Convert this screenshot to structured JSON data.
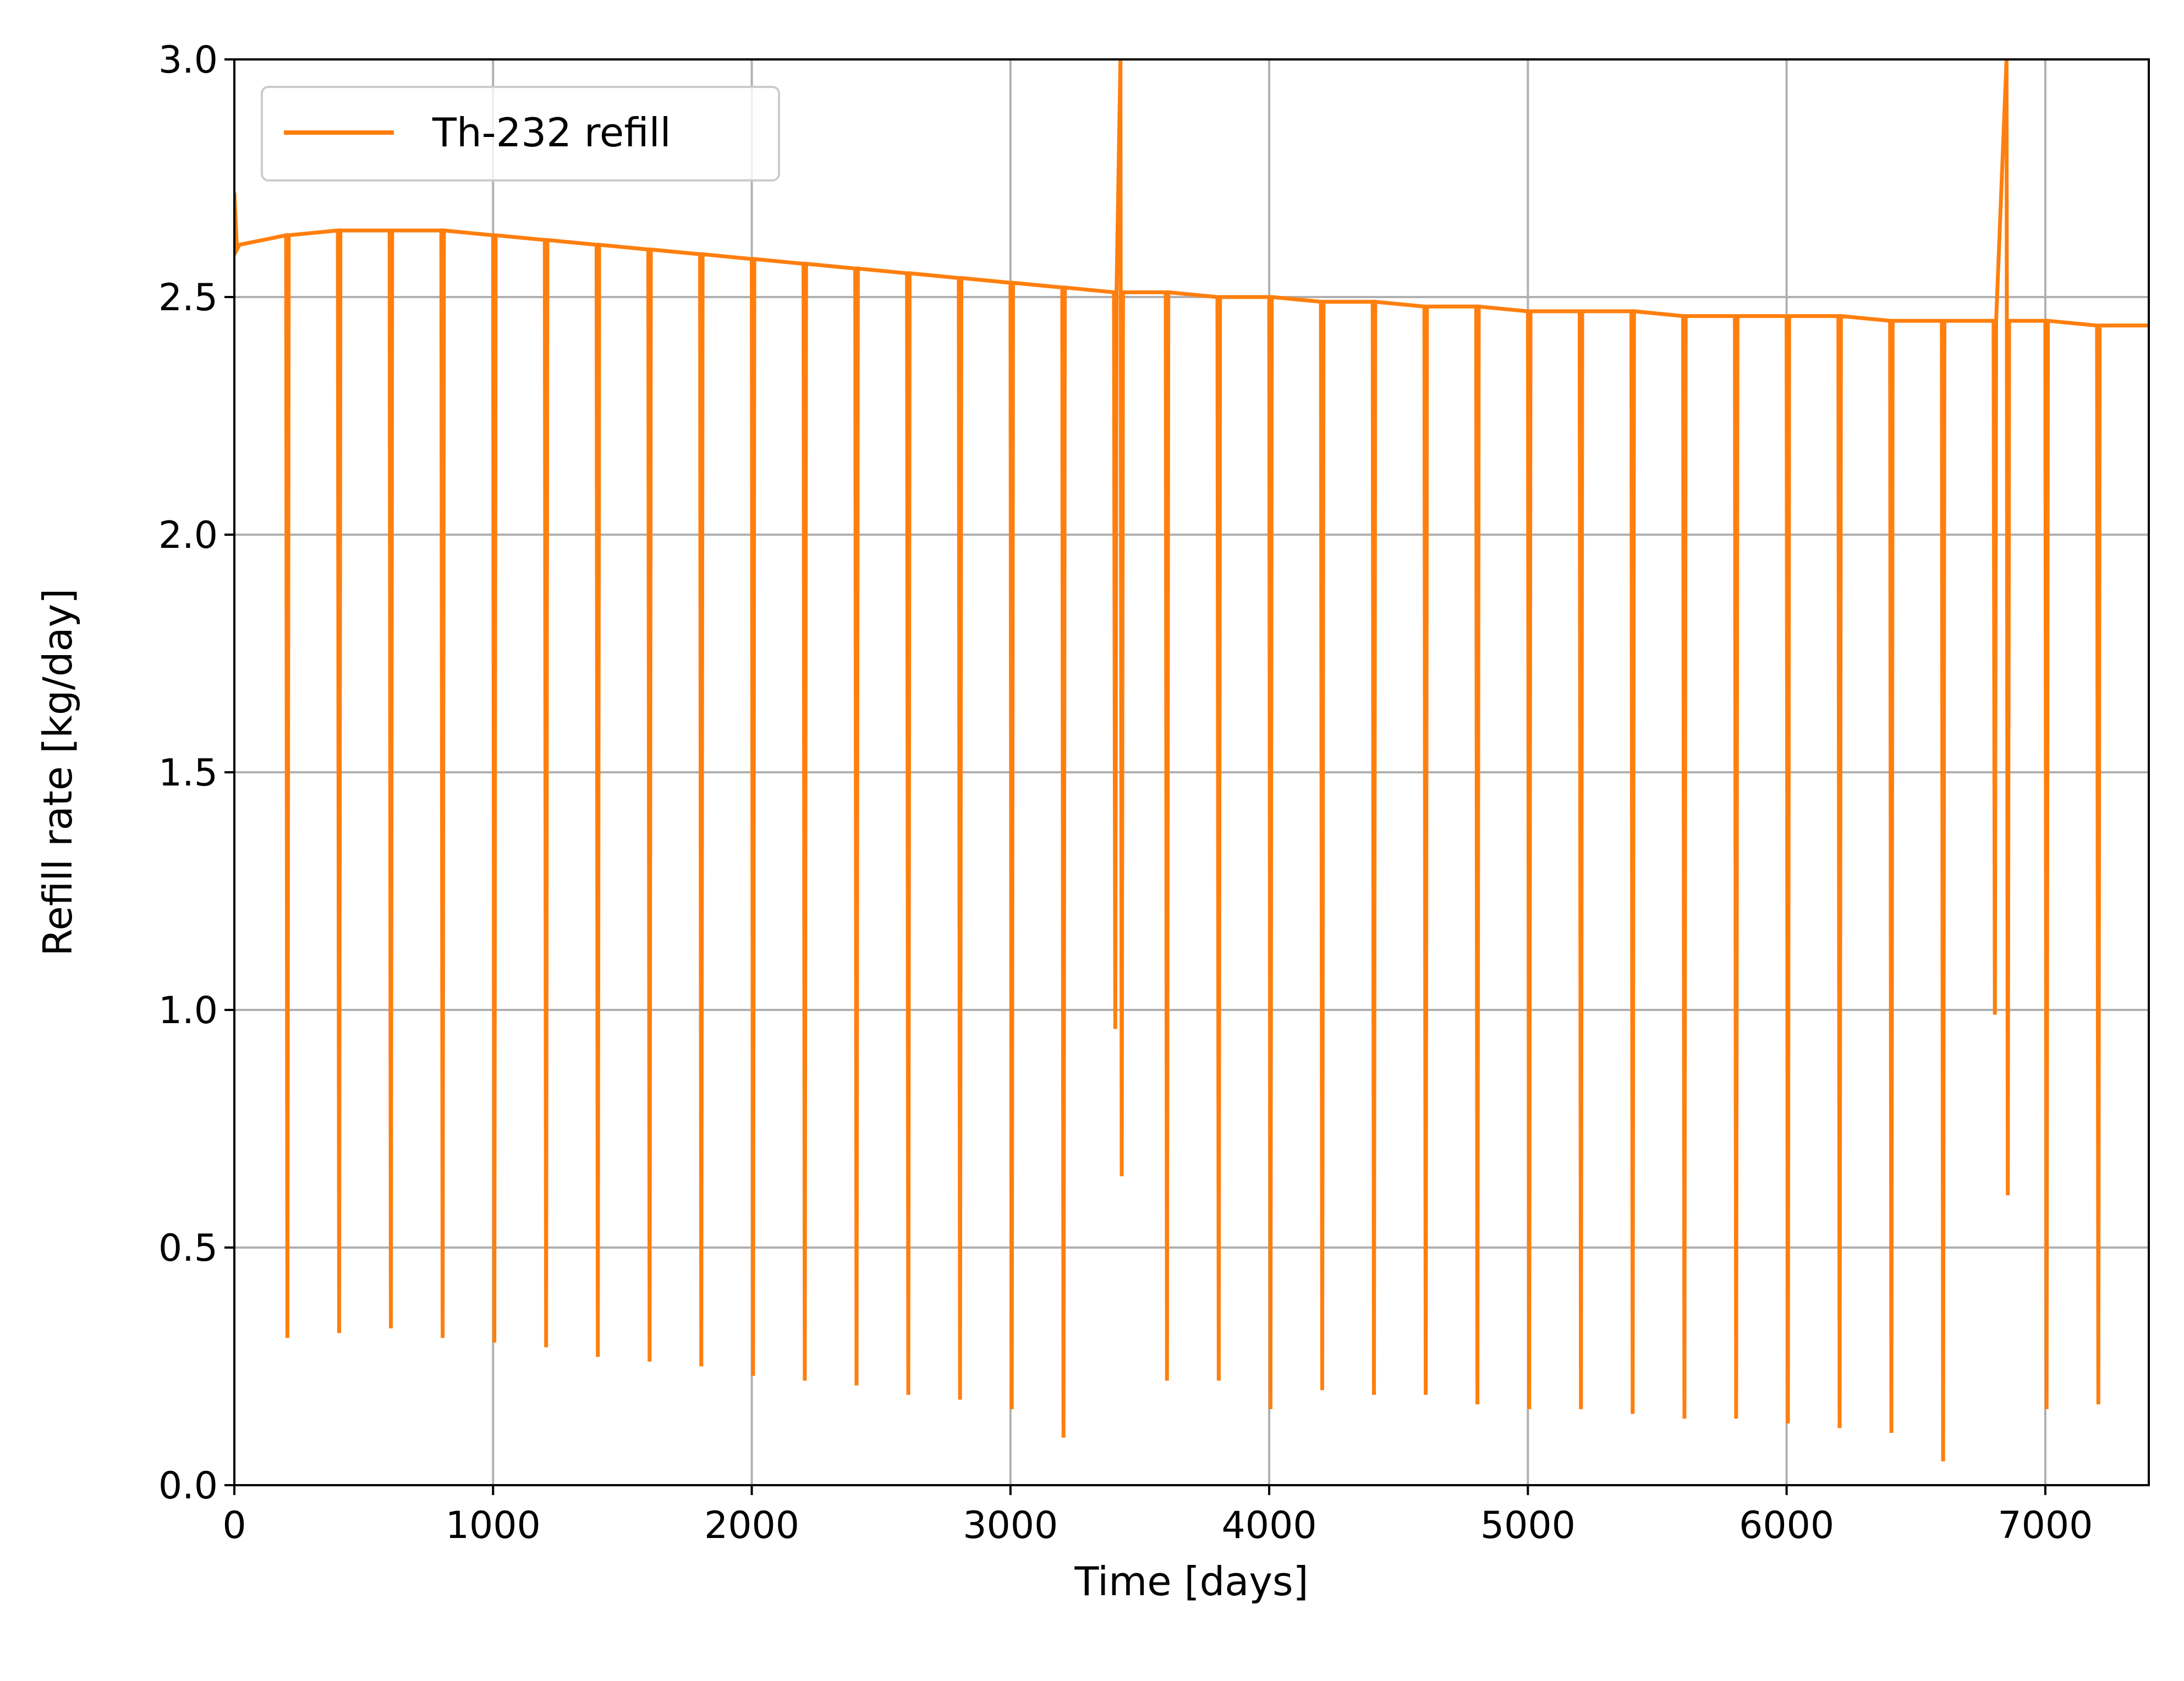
{
  "chart_data": {
    "type": "line",
    "xlabel": "Time [days]",
    "ylabel": "Refill rate [kg/day]",
    "xlim": [
      0,
      7400
    ],
    "ylim": [
      0.0,
      3.0
    ],
    "xticks": [
      0,
      1000,
      2000,
      3000,
      4000,
      5000,
      6000,
      7000
    ],
    "xtick_labels": [
      "0",
      "1000",
      "2000",
      "3000",
      "4000",
      "5000",
      "6000",
      "7000"
    ],
    "yticks": [
      0.0,
      0.5,
      1.0,
      1.5,
      2.0,
      2.5,
      3.0
    ],
    "ytick_labels": [
      "0.0",
      "0.5",
      "1.0",
      "1.5",
      "2.0",
      "2.5",
      "3.0"
    ],
    "grid": true,
    "legend_position": "upper-left",
    "series": [
      {
        "name": "Th-232 refill",
        "color": "#ff7f0e",
        "x": [
          0,
          10,
          20,
          200,
          205,
          210,
          400,
          405,
          410,
          600,
          605,
          610,
          800,
          805,
          810,
          1000,
          1005,
          1010,
          1200,
          1205,
          1210,
          1400,
          1405,
          1410,
          1600,
          1605,
          1610,
          1800,
          1805,
          1810,
          2000,
          2005,
          2010,
          2200,
          2205,
          2210,
          2400,
          2405,
          2410,
          2600,
          2605,
          2610,
          2800,
          2805,
          2810,
          3000,
          3005,
          3010,
          3200,
          3205,
          3210,
          3400,
          3405,
          3410,
          3425,
          3430,
          3435,
          3600,
          3605,
          3610,
          3800,
          3805,
          3810,
          4000,
          4005,
          4010,
          4200,
          4205,
          4210,
          4400,
          4405,
          4410,
          4600,
          4605,
          4610,
          4800,
          4805,
          4810,
          5000,
          5005,
          5010,
          5200,
          5205,
          5210,
          5400,
          5405,
          5410,
          5600,
          5605,
          5610,
          5800,
          5805,
          5810,
          6000,
          6005,
          6010,
          6200,
          6205,
          6210,
          6400,
          6405,
          6410,
          6600,
          6605,
          6610,
          6800,
          6805,
          6810,
          6850,
          6855,
          6860,
          7000,
          7005,
          7010,
          7200,
          7205,
          7210,
          7400
        ],
        "y": [
          2.72,
          2.6,
          2.61,
          2.63,
          0.31,
          2.63,
          2.64,
          0.32,
          2.64,
          2.64,
          0.33,
          2.64,
          2.64,
          0.31,
          2.64,
          2.63,
          0.3,
          2.63,
          2.62,
          0.29,
          2.62,
          2.61,
          0.27,
          2.61,
          2.6,
          0.26,
          2.6,
          2.59,
          0.25,
          2.59,
          2.58,
          0.23,
          2.58,
          2.57,
          0.22,
          2.57,
          2.56,
          0.21,
          2.56,
          2.55,
          0.19,
          2.55,
          2.54,
          0.18,
          2.54,
          2.53,
          0.16,
          2.53,
          2.52,
          0.1,
          2.52,
          2.51,
          0.96,
          2.51,
          3.0,
          0.65,
          2.51,
          2.51,
          0.22,
          2.51,
          2.5,
          0.22,
          2.5,
          2.5,
          0.16,
          2.5,
          2.49,
          0.2,
          2.49,
          2.49,
          0.19,
          2.49,
          2.48,
          0.19,
          2.48,
          2.48,
          0.17,
          2.48,
          2.47,
          0.16,
          2.47,
          2.47,
          0.16,
          2.47,
          2.47,
          0.15,
          2.47,
          2.46,
          0.14,
          2.46,
          2.46,
          0.14,
          2.46,
          2.46,
          0.13,
          2.46,
          2.46,
          0.12,
          2.46,
          2.45,
          0.11,
          2.45,
          2.45,
          0.05,
          2.45,
          2.45,
          0.99,
          2.45,
          3.0,
          0.61,
          2.45,
          2.45,
          0.16,
          2.45,
          2.44,
          0.17,
          2.44,
          2.44
        ]
      }
    ]
  }
}
